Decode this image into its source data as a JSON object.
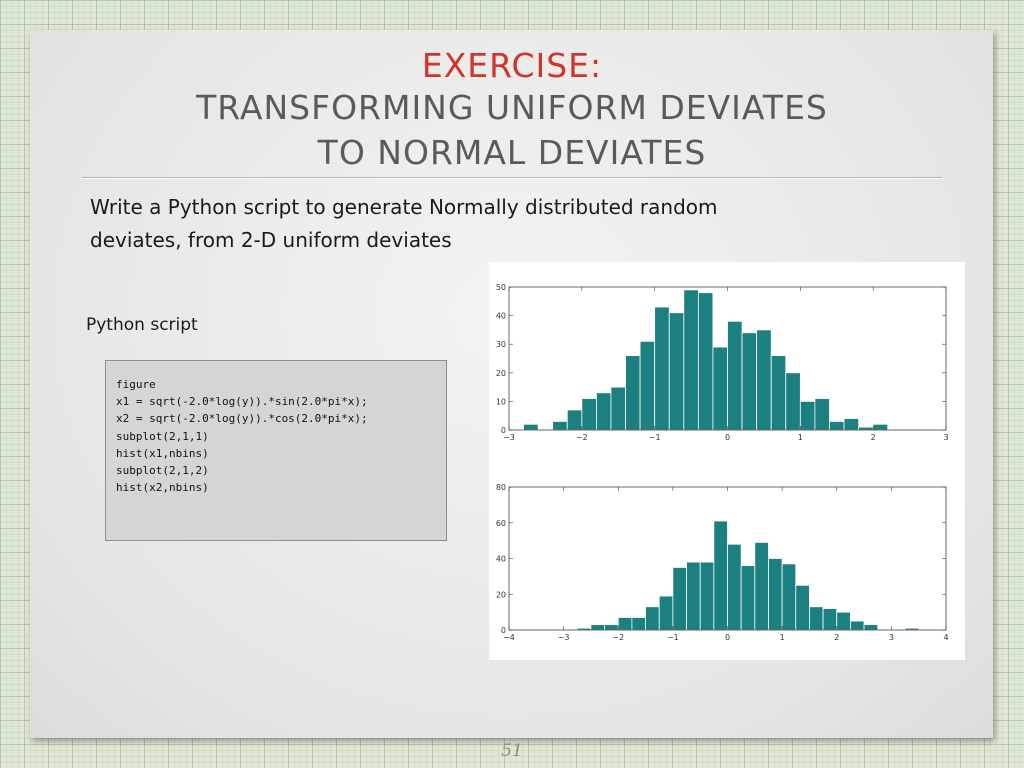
{
  "slide": {
    "title_line1": "EXERCISE:",
    "title_line2": "TRANSFORMING UNIFORM DEVIATES",
    "title_line3": "TO NORMAL DEVIATES",
    "body_line1": "Write a Python script to generate Normally distributed random",
    "body_line2": "deviates, from 2-D uniform deviates",
    "script_label": "Python script",
    "code": "figure\nx1 = sqrt(-2.0*log(y)).*sin(2.0*pi*x);\nx2 = sqrt(-2.0*log(y)).*cos(2.0*pi*x);\nsubplot(2,1,1)\nhist(x1,nbins)\nsubplot(2,1,2)\nhist(x2,nbins)",
    "page_number": "51"
  },
  "colors": {
    "title_accent": "#d0342c",
    "bar_fill": "#1c7f80"
  },
  "chart_data": [
    {
      "type": "bar",
      "title": "",
      "xlabel": "",
      "ylabel": "",
      "xlim": [
        -3,
        3
      ],
      "ylim": [
        0,
        50
      ],
      "xticks": [
        -3,
        -2,
        -1,
        0,
        1,
        2,
        3
      ],
      "yticks": [
        0,
        10,
        20,
        30,
        40,
        50
      ],
      "bin_width": 0.2,
      "bin_start": -3.0,
      "values": [
        0,
        2,
        0,
        3,
        7,
        11,
        13,
        15,
        26,
        31,
        43,
        41,
        49,
        48,
        29,
        38,
        34,
        35,
        26,
        20,
        10,
        11,
        3,
        4,
        1,
        2,
        0,
        0,
        0,
        0
      ]
    },
    {
      "type": "bar",
      "title": "",
      "xlabel": "",
      "ylabel": "",
      "xlim": [
        -4,
        4
      ],
      "ylim": [
        0,
        80
      ],
      "xticks": [
        -4,
        -3,
        -2,
        -1,
        0,
        1,
        2,
        3,
        4
      ],
      "yticks": [
        0,
        20,
        40,
        60,
        80
      ],
      "bin_width": 0.25,
      "bin_start": -4.0,
      "values": [
        0,
        0,
        0,
        0,
        0,
        1,
        3,
        3,
        7,
        7,
        13,
        19,
        35,
        38,
        38,
        61,
        48,
        36,
        49,
        40,
        37,
        25,
        13,
        12,
        10,
        5,
        3,
        0,
        0,
        1,
        0,
        0
      ]
    }
  ]
}
